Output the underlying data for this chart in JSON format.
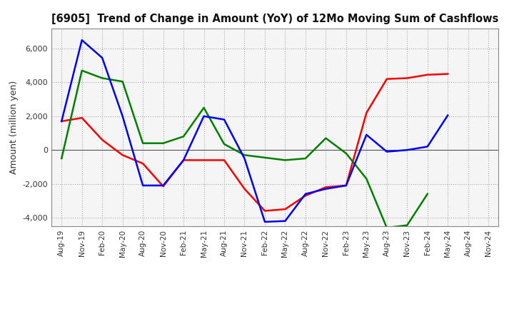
{
  "title": "[6905]  Trend of Change in Amount (YoY) of 12Mo Moving Sum of Cashflows",
  "ylabel": "Amount (million yen)",
  "x_labels": [
    "Aug-19",
    "Nov-19",
    "Feb-20",
    "May-20",
    "Aug-20",
    "Nov-20",
    "Feb-21",
    "May-21",
    "Aug-21",
    "Nov-21",
    "Feb-22",
    "May-22",
    "Aug-22",
    "Nov-22",
    "Feb-23",
    "May-23",
    "Aug-23",
    "Nov-23",
    "Feb-24",
    "May-24",
    "Aug-24",
    "Nov-24"
  ],
  "operating": [
    1700,
    1900,
    600,
    -300,
    -800,
    -2150,
    -600,
    -600,
    -600,
    -2300,
    -3600,
    -3500,
    -2700,
    -2200,
    -2100,
    2200,
    4200,
    4250,
    4450,
    4500,
    null,
    null
  ],
  "investing": [
    -500,
    4700,
    4250,
    4050,
    400,
    400,
    800,
    2500,
    350,
    -300,
    -450,
    -600,
    -500,
    700,
    -200,
    -1700,
    -4600,
    -4450,
    -2600,
    null,
    null,
    null
  ],
  "free": [
    1700,
    6500,
    5450,
    2000,
    -2100,
    -2100,
    -600,
    2000,
    1800,
    -500,
    -4250,
    -4200,
    -2600,
    -2300,
    -2100,
    900,
    -100,
    0,
    200,
    2050,
    null,
    null
  ],
  "operating_color": "#ff0000",
  "investing_color": "#008000",
  "free_color": "#0000ff",
  "ylim": [
    -4500,
    7200
  ],
  "yticks": [
    -4000,
    -2000,
    0,
    2000,
    4000,
    6000
  ],
  "plot_bg_color": "#f5f5f5",
  "background_color": "#ffffff",
  "grid_color": "#aaaaaa"
}
